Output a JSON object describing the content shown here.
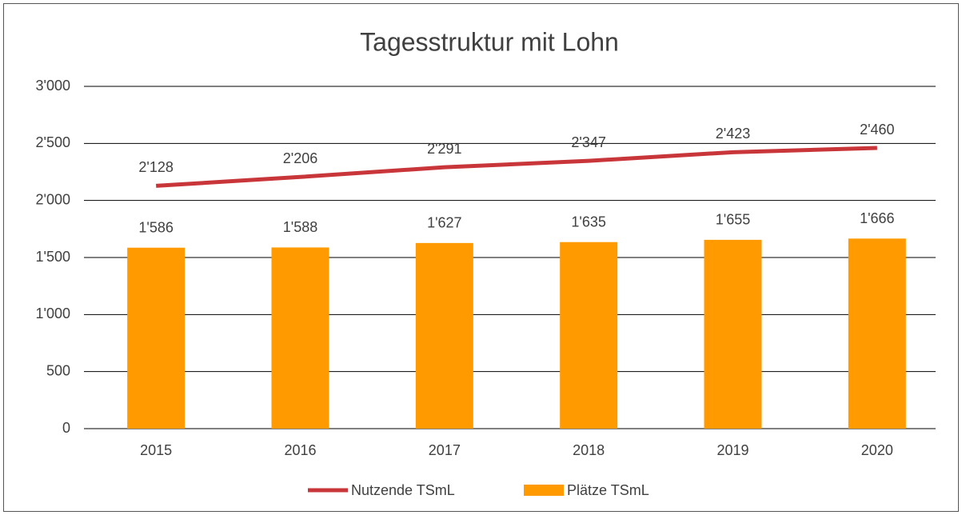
{
  "chart_data": {
    "type": "bar",
    "title": "Tagesstruktur mit Lohn",
    "categories": [
      "2015",
      "2016",
      "2017",
      "2018",
      "2019",
      "2020"
    ],
    "series": [
      {
        "name": "Nutzende TSmL",
        "type": "line",
        "color": "#c9363a",
        "values": [
          2128,
          2206,
          2291,
          2347,
          2423,
          2460
        ],
        "value_labels": [
          "2'128",
          "2'206",
          "2'291",
          "2'347",
          "2'423",
          "2'460"
        ]
      },
      {
        "name": "Plätze TSmL",
        "type": "bar",
        "color": "#ff9a00",
        "values": [
          1586,
          1588,
          1627,
          1635,
          1655,
          1666
        ],
        "value_labels": [
          "1'586",
          "1'588",
          "1'627",
          "1'635",
          "1'655",
          "1'666"
        ]
      }
    ],
    "ylim": [
      0,
      3000
    ],
    "yticks": [
      0,
      500,
      {
        "value": 1000,
        "label": "1'000"
      },
      {
        "value": 1500,
        "label": "1'500"
      },
      {
        "value": 2000,
        "label": "2'000"
      },
      {
        "value": 2500,
        "label": "2'500"
      },
      {
        "value": 3000,
        "label": "3'000"
      }
    ],
    "grid": true,
    "legend": "bottom"
  }
}
